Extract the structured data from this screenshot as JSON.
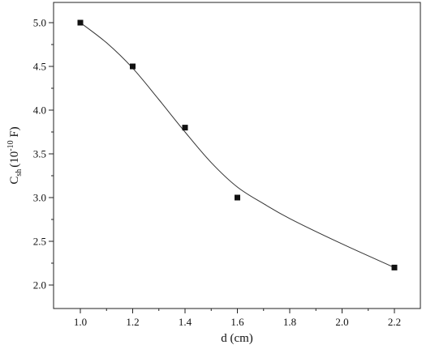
{
  "chart_data": {
    "type": "scatter",
    "xlabel": "d (cm)",
    "ylabel": {
      "base": "C",
      "sub": "sh",
      "mid": "(10",
      "sup": "-10",
      "end": " F)"
    },
    "xlim": [
      0.9,
      2.3
    ],
    "ylim": [
      1.9,
      5.25
    ],
    "x_ticks": [
      1.0,
      1.2,
      1.4,
      1.6,
      1.8,
      2.0,
      2.2
    ],
    "x_tick_labels": [
      "1.0",
      "1.2",
      "1.4",
      "1.6",
      "1.8",
      "2.0",
      "2.2"
    ],
    "y_ticks": [
      2.0,
      2.5,
      3.0,
      3.5,
      4.0,
      4.5,
      5.0
    ],
    "y_tick_labels": [
      "2.0",
      "2.5",
      "3.0",
      "3.5",
      "4.0",
      "4.5",
      "5.0"
    ],
    "grid": false,
    "series": [
      {
        "marker": "square",
        "color": "#111111",
        "x": [
          1.0,
          1.2,
          1.4,
          1.6,
          2.2
        ],
        "y": [
          5.0,
          4.5,
          3.8,
          3.0,
          2.2
        ]
      }
    ],
    "fit_curve": {
      "style": "smooth line",
      "color": "#333333",
      "x": [
        1.0,
        1.1,
        1.2,
        1.3,
        1.4,
        1.5,
        1.6,
        1.7,
        1.8,
        2.0,
        2.2
      ],
      "y": [
        5.0,
        4.77,
        4.48,
        4.12,
        3.75,
        3.4,
        3.12,
        2.93,
        2.76,
        2.47,
        2.2
      ]
    }
  }
}
